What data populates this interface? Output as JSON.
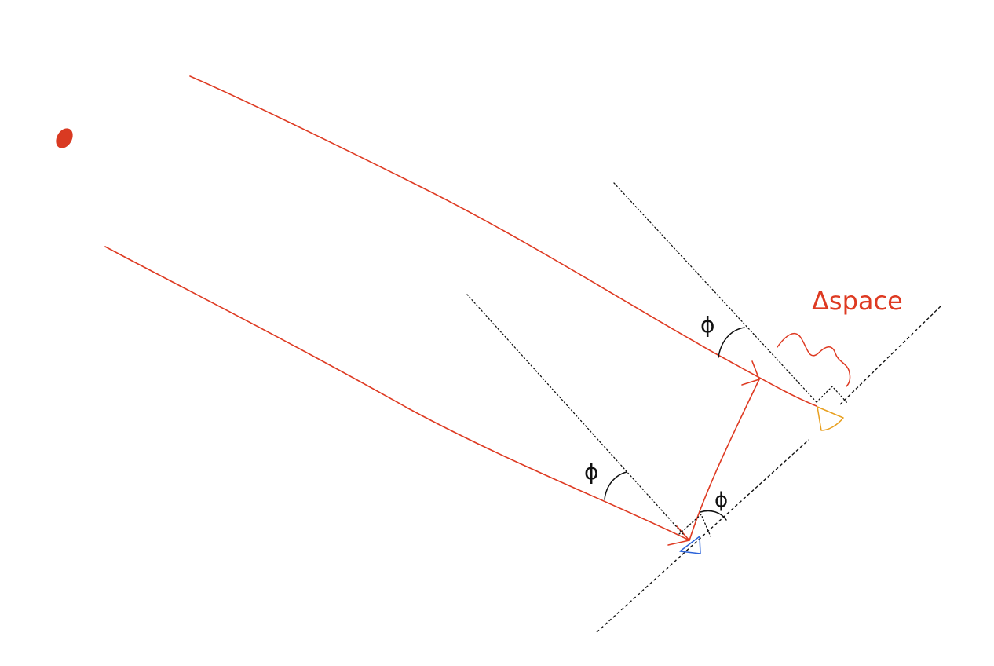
{
  "labels": {
    "delta_space": "Δspace",
    "angle_upper": "ϕ",
    "angle_lower": "ϕ",
    "angle_reflected": "ϕ"
  },
  "colors": {
    "ray": "#de3a22",
    "ink": "#111111",
    "source": "#d93a22",
    "receiver_lower": "#2b63d9",
    "receiver_upper": "#e8a020",
    "background": "#ffffff"
  },
  "icons": {
    "source": "source-dot-icon",
    "receiver_lower": "blue-receiver-icon",
    "receiver_upper": "orange-receiver-icon"
  }
}
